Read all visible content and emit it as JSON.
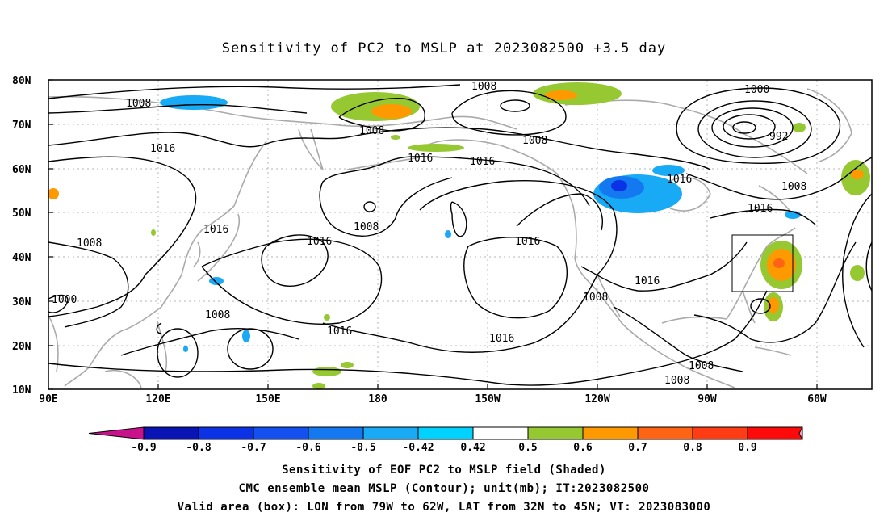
{
  "title": "Sensitivity of PC2 to MSLP at 2023082500 +3.5 day",
  "lat_labels": [
    "80N",
    "70N",
    "60N",
    "50N",
    "40N",
    "30N",
    "20N",
    "10N"
  ],
  "lon_labels": [
    "90E",
    "120E",
    "150E",
    "180",
    "150W",
    "120W",
    "90W",
    "60W"
  ],
  "isobar_labels": [
    "1008",
    "1008",
    "1008",
    "1008",
    "1000",
    "992",
    "1016",
    "1016",
    "1016",
    "1016",
    "1008",
    "1016",
    "1008",
    "1016",
    "1016",
    "1008",
    "1016",
    "1000",
    "1008",
    "1016",
    "1016",
    "1008",
    "1008",
    "1008",
    "1016"
  ],
  "colorbar": {
    "labels": [
      "-0.9",
      "-0.8",
      "-0.7",
      "-0.6",
      "-0.5",
      "-0.42",
      "0.42",
      "0.5",
      "0.6",
      "0.7",
      "0.8",
      "0.9"
    ],
    "colors": [
      "#c8128c",
      "#0a14b4",
      "#0c32e6",
      "#1450f0",
      "#1478f0",
      "#18aaf5",
      "#00d2ff",
      "#ffffff",
      "#96c832",
      "#ff9900",
      "#ff6414",
      "#ff3c14",
      "#ff0a0a",
      "#f0a0c8"
    ]
  },
  "captions": [
    "Sensitivity of EOF PC2 to MSLP field (Shaded)",
    "CMC ensemble mean MSLP (Contour); unit(mb); IT:2023082500",
    "Valid area (box): LON from 79W to 62W, LAT from 32N to 45N; VT: 2023083000"
  ]
}
